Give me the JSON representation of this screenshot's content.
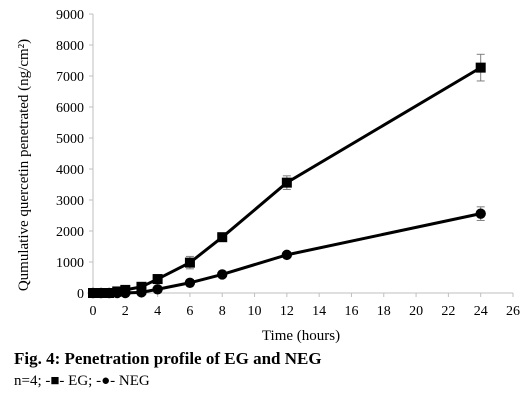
{
  "figure": {
    "caption": "Fig. 4: Penetration profile of EG and NEG",
    "legend_text": "n=4; -■- EG; -●- NEG"
  },
  "chart_data": {
    "type": "line",
    "title": "",
    "xlabel": "Time (hours)",
    "ylabel": "Qumulative quercetin penetrated (ng/cm²)",
    "xlim": [
      0,
      26
    ],
    "ylim": [
      0,
      9000
    ],
    "xticks": [
      0,
      2,
      4,
      6,
      8,
      10,
      12,
      14,
      16,
      18,
      20,
      22,
      24,
      26
    ],
    "yticks": [
      0,
      1000,
      2000,
      3000,
      4000,
      5000,
      6000,
      7000,
      8000,
      9000
    ],
    "grid": false,
    "series": [
      {
        "name": "EG",
        "marker": "square",
        "color": "#000000",
        "x": [
          0,
          0.5,
          1,
          1.5,
          2,
          3,
          4,
          6,
          8,
          12,
          24
        ],
        "y": [
          0,
          0,
          0,
          50,
          100,
          200,
          450,
          980,
          1800,
          3560,
          7270
        ],
        "err": [
          0,
          0,
          0,
          0,
          0,
          0,
          80,
          200,
          80,
          220,
          430
        ]
      },
      {
        "name": "NEG",
        "marker": "circle",
        "color": "#000000",
        "x": [
          0,
          0.5,
          1,
          1.5,
          2,
          3,
          4,
          6,
          8,
          12,
          24
        ],
        "y": [
          0,
          0,
          0,
          0,
          0,
          20,
          120,
          330,
          600,
          1230,
          2560
        ],
        "err": [
          0,
          0,
          0,
          0,
          0,
          0,
          0,
          30,
          40,
          60,
          220
        ]
      }
    ]
  }
}
